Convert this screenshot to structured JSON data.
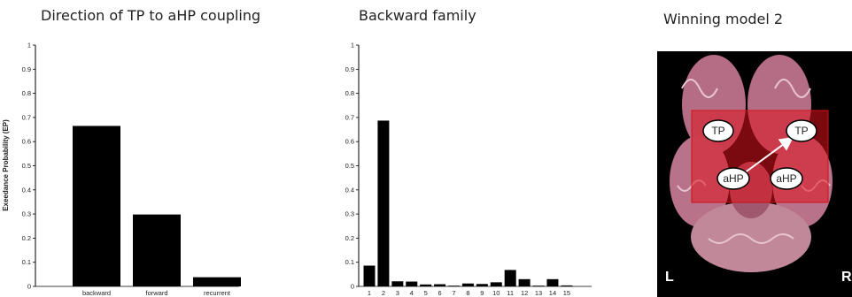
{
  "chart_data": [
    {
      "type": "bar",
      "title": "Direction of TP to aHP coupling",
      "ylabel": "Exeedance Probability (EP)",
      "xlabel": "",
      "categories": [
        "backward",
        "forward",
        "recurrent"
      ],
      "values": [
        0.665,
        0.298,
        0.038
      ],
      "ylim": [
        0,
        1
      ],
      "yticks": [
        "0",
        "0.1",
        "0.2",
        "0.3",
        "0.4",
        "0.5",
        "0.6",
        "0.7",
        "0.8",
        "0.9",
        "1"
      ],
      "bar_color": "#000000"
    },
    {
      "type": "bar",
      "title": "Backward family",
      "xlabel": "",
      "ylabel": "",
      "categories": [
        "1",
        "2",
        "3",
        "4",
        "5",
        "6",
        "7",
        "8",
        "9",
        "10",
        "11",
        "12",
        "13",
        "14",
        "15"
      ],
      "values": [
        0.086,
        0.687,
        0.021,
        0.02,
        0.008,
        0.009,
        0.003,
        0.012,
        0.01,
        0.017,
        0.068,
        0.03,
        0.003,
        0.03,
        0.004
      ],
      "ylim": [
        0,
        1
      ],
      "yticks": [
        "0",
        "0.1",
        "0.2",
        "0.3",
        "0.4",
        "0.5",
        "0.6",
        "0.7",
        "0.8",
        "0.9",
        "1"
      ],
      "bar_color": "#000000"
    }
  ],
  "brain_panel": {
    "title": "Winning model 2",
    "nodes": [
      "TP",
      "TP",
      "aHP",
      "aHP"
    ],
    "left_marker": "L",
    "right_marker": "R",
    "highlight_color": "#e0121d"
  }
}
